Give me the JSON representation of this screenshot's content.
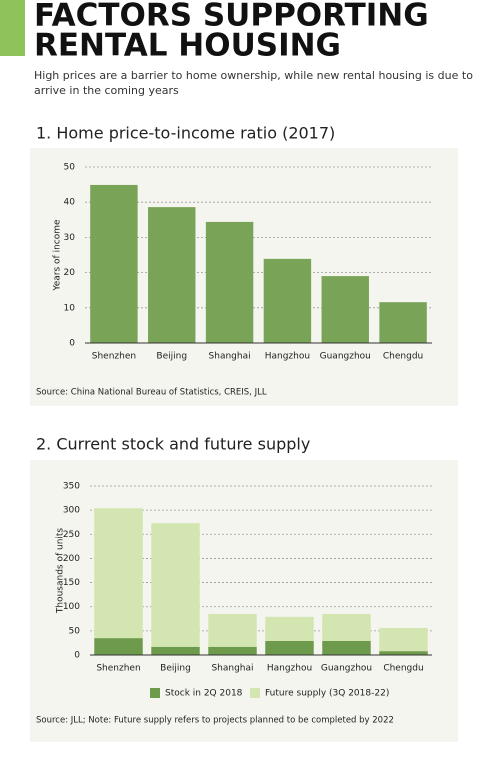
{
  "header": {
    "title_lines": [
      "FACTORS SUPPORTING",
      "RENTAL HOUSING"
    ],
    "subtitle_lines": [
      "High prices are a barrier to home ownership, while new rental housing is due to",
      "arrive in the coming years"
    ]
  },
  "chart_data": [
    {
      "type": "bar",
      "title": "1. Home price-to-income ratio (2017)",
      "y_label": "Years of income",
      "categories": [
        "Shenzhen",
        "Beijing",
        "Shanghai",
        "Hangzhou",
        "Guangzhou",
        "Chengdu"
      ],
      "values": [
        44.9,
        38.6,
        34.4,
        23.9,
        19.0,
        11.6
      ],
      "color": "#79a357",
      "ylim": [
        0,
        50
      ],
      "yticks": [
        0,
        10,
        20,
        30,
        40,
        50
      ],
      "grid": true,
      "source": "Source: China National Bureau of Statistics, CREIS, JLL"
    },
    {
      "type": "stacked_bar",
      "title": "2. Current stock and future supply",
      "y_label": "Thousands of units",
      "categories": [
        "Shenzhen",
        "Beijing",
        "Shanghai",
        "Hangzhou",
        "Guangzhou",
        "Chengdu"
      ],
      "series": [
        {
          "name": "Stock in 2Q 2018",
          "color": "#6e9a4b",
          "values": [
            35,
            17,
            17,
            29,
            29,
            8
          ]
        },
        {
          "name": "Future supply (3Q 2018-22)",
          "color": "#d3e6b2",
          "values": [
            269,
            256,
            68,
            50,
            56,
            48
          ]
        }
      ],
      "ylim": [
        0,
        350
      ],
      "yticks": [
        0,
        50,
        100,
        150,
        200,
        250,
        300,
        350
      ],
      "grid": true,
      "legend": "bottom",
      "source": "Source: JLL; Note: Future supply refers to projects planned to be completed by 2022"
    }
  ]
}
